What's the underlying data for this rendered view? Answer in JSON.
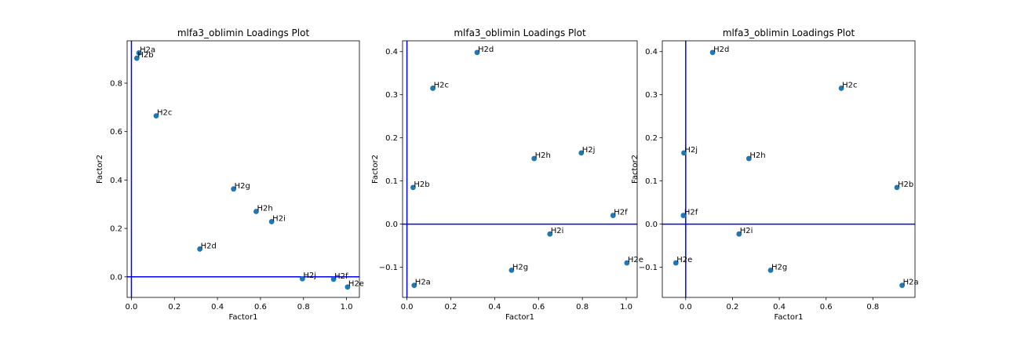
{
  "chart_data": [
    {
      "type": "scatter",
      "title": "mlfa3_oblimin Loadings Plot",
      "xlabel": "Factor1",
      "ylabel": "Factor2",
      "xlim": [
        -0.02,
        1.06
      ],
      "ylim": [
        -0.085,
        0.975
      ],
      "xticks": [
        0.0,
        0.2,
        0.4,
        0.6,
        0.8,
        1.0
      ],
      "yticks": [
        0.0,
        0.2,
        0.4,
        0.6,
        0.8
      ],
      "xtick_labels": [
        "0.0",
        "0.2",
        "0.4",
        "0.6",
        "0.8",
        "1.0"
      ],
      "ytick_labels": [
        "0.0",
        "0.2",
        "0.4",
        "0.6",
        "0.8"
      ],
      "grid": false,
      "marker_color": "#1f77b4",
      "reference_line_color": "#0000ff",
      "points": [
        {
          "label": "H2a",
          "x": 0.035,
          "y": 0.925
        },
        {
          "label": "H2b",
          "x": 0.025,
          "y": 0.903
        },
        {
          "label": "H2c",
          "x": 0.115,
          "y": 0.665
        },
        {
          "label": "H2d",
          "x": 0.318,
          "y": 0.115
        },
        {
          "label": "H2g",
          "x": 0.475,
          "y": 0.363
        },
        {
          "label": "H2h",
          "x": 0.58,
          "y": 0.27
        },
        {
          "label": "H2i",
          "x": 0.652,
          "y": 0.228
        },
        {
          "label": "H2j",
          "x": 0.795,
          "y": -0.008
        },
        {
          "label": "H2f",
          "x": 0.94,
          "y": -0.01
        },
        {
          "label": "H2e",
          "x": 1.005,
          "y": -0.042
        }
      ]
    },
    {
      "type": "scatter",
      "title": "mlfa3_oblimin Loadings Plot",
      "xlabel": "Factor1",
      "ylabel": "Factor2",
      "xlim": [
        -0.02,
        1.05
      ],
      "ylim": [
        -0.17,
        0.425
      ],
      "xticks": [
        0.0,
        0.2,
        0.4,
        0.6,
        0.8,
        1.0
      ],
      "yticks": [
        -0.1,
        0.0,
        0.1,
        0.2,
        0.3,
        0.4
      ],
      "xtick_labels": [
        "0.0",
        "0.2",
        "0.4",
        "0.6",
        "0.8",
        "1.0"
      ],
      "ytick_labels": [
        "−0.1",
        "0.0",
        "0.1",
        "0.2",
        "0.3",
        "0.4"
      ],
      "grid": false,
      "marker_color": "#1f77b4",
      "reference_line_color": "#0000ff",
      "points": [
        {
          "label": "H2d",
          "x": 0.32,
          "y": 0.398
        },
        {
          "label": "H2c",
          "x": 0.118,
          "y": 0.315
        },
        {
          "label": "H2h",
          "x": 0.58,
          "y": 0.152
        },
        {
          "label": "H2j",
          "x": 0.795,
          "y": 0.165
        },
        {
          "label": "H2b",
          "x": 0.028,
          "y": 0.085
        },
        {
          "label": "H2f",
          "x": 0.94,
          "y": 0.02
        },
        {
          "label": "H2i",
          "x": 0.652,
          "y": -0.023
        },
        {
          "label": "H2e",
          "x": 1.003,
          "y": -0.09
        },
        {
          "label": "H2g",
          "x": 0.477,
          "y": -0.107
        },
        {
          "label": "H2a",
          "x": 0.033,
          "y": -0.142
        }
      ]
    },
    {
      "type": "scatter",
      "title": "mlfa3_oblimin Loadings Plot",
      "xlabel": "Factor1",
      "ylabel": "Factor2",
      "xlim": [
        -0.1,
        0.98
      ],
      "ylim": [
        -0.17,
        0.425
      ],
      "xticks": [
        0.0,
        0.2,
        0.4,
        0.6,
        0.8
      ],
      "yticks": [
        -0.1,
        0.0,
        0.1,
        0.2,
        0.3,
        0.4
      ],
      "xtick_labels": [
        "0.0",
        "0.2",
        "0.4",
        "0.6",
        "0.8"
      ],
      "ytick_labels": [
        "−0.1",
        "0.0",
        "0.1",
        "0.2",
        "0.3",
        "0.4"
      ],
      "grid": false,
      "marker_color": "#1f77b4",
      "reference_line_color": "#0000ff",
      "points": [
        {
          "label": "H2d",
          "x": 0.115,
          "y": 0.398
        },
        {
          "label": "H2c",
          "x": 0.665,
          "y": 0.315
        },
        {
          "label": "H2j",
          "x": -0.008,
          "y": 0.165
        },
        {
          "label": "H2h",
          "x": 0.27,
          "y": 0.152
        },
        {
          "label": "H2b",
          "x": 0.903,
          "y": 0.085
        },
        {
          "label": "H2f",
          "x": -0.01,
          "y": 0.02
        },
        {
          "label": "H2i",
          "x": 0.228,
          "y": -0.023
        },
        {
          "label": "H2e",
          "x": -0.042,
          "y": -0.09
        },
        {
          "label": "H2g",
          "x": 0.363,
          "y": -0.107
        },
        {
          "label": "H2a",
          "x": 0.925,
          "y": -0.142
        }
      ]
    }
  ]
}
